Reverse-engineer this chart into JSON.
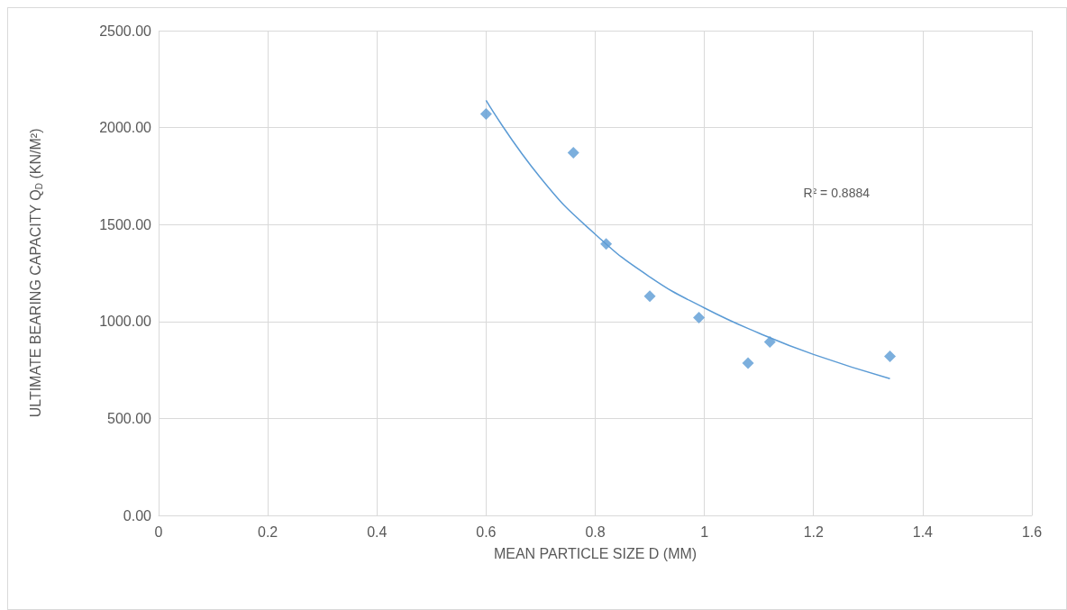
{
  "chart_data": {
    "type": "scatter",
    "xlabel": "MEAN PARTICLE SIZE D (MM)",
    "ylabel": "ULTIMATE BEARING CAPACITY Q$_{D}$ (KN/M²)",
    "xlim": [
      0,
      1.6
    ],
    "xticks": [
      0,
      0.2,
      0.4,
      0.6,
      0.8,
      1,
      1.2,
      1.4,
      1.6
    ],
    "ylim": [
      0,
      2500
    ],
    "yticks": [
      {
        "value": 0,
        "label": "0.00"
      },
      {
        "value": 500,
        "label": "500.00"
      },
      {
        "value": 1000,
        "label": "1000.00"
      },
      {
        "value": 1500,
        "label": "1500.00"
      },
      {
        "value": 2000,
        "label": "2000.00"
      },
      {
        "value": 2500,
        "label": "2500.00"
      }
    ],
    "grid": true,
    "marker": "diamond",
    "series": [
      {
        "color": "#5b9bd5",
        "x": [
          0.6,
          0.76,
          0.82,
          0.9,
          0.99,
          1.08,
          1.12,
          1.34
        ],
        "values": [
          2070,
          1870,
          1400,
          1130,
          1020,
          785,
          895,
          820
        ]
      },
      {
        "type": "line",
        "color": "#5b9bd5",
        "marker": "none",
        "x": [
          0.6,
          0.7,
          0.8,
          0.9,
          1.0,
          1.1,
          1.2,
          1.34
        ],
        "values": [
          2140,
          1740,
          1450,
          1230,
          1070,
          940,
          830,
          705
        ]
      }
    ],
    "annotations": [
      "R² = 0.8884"
    ]
  }
}
